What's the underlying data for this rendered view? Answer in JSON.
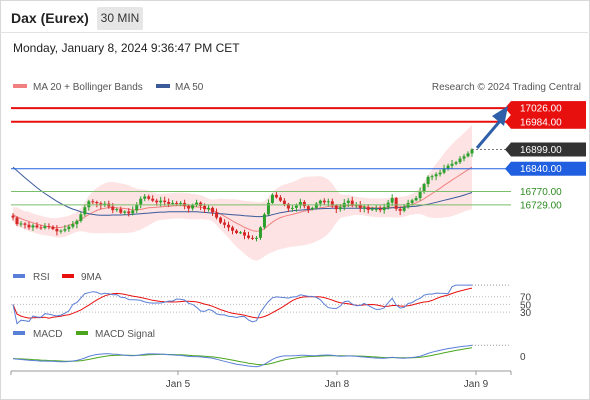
{
  "header": {
    "title": "Dax (Eurex)",
    "timeframe": "30 MIN",
    "datetime": "Monday, January 8, 2024 9:36:47 PM CET"
  },
  "legend": {
    "ma20": "MA 20 + Bollinger Bands",
    "ma50": "MA 50",
    "credit": "Research © 2024 Trading Central",
    "rsi": "RSI",
    "rsi_ma": "9MA",
    "macd": "MACD",
    "macd_signal": "MACD Signal"
  },
  "colors": {
    "resistance": "#e8100f",
    "support": "#7bbf6a",
    "pivot": "#2060e0",
    "candle_up": "#2ca02c",
    "candle_down": "#d62728",
    "ma20": "#f08080",
    "ma50": "#3a5a9a",
    "band_fill": "#fde3e3",
    "arrow": "#2f5fa8",
    "last_price_tag": "#333333"
  },
  "chart_data": {
    "type": "candlestick",
    "price_ylim": [
      16560,
      17060
    ],
    "x_tick_labels": [
      "Jan 5",
      "Jan 8",
      "Jan 9"
    ],
    "levels": [
      {
        "label": "17026.00",
        "value": 17026,
        "kind": "resistance"
      },
      {
        "label": "16984.00",
        "value": 16984,
        "kind": "resistance"
      },
      {
        "label": "16899.00",
        "value": 16899,
        "kind": "last"
      },
      {
        "label": "16840.00",
        "value": 16840,
        "kind": "pivot"
      },
      {
        "label": "16770.00",
        "value": 16770,
        "kind": "support"
      },
      {
        "label": "16729.00",
        "value": 16729,
        "kind": "support"
      }
    ],
    "close": [
      16690,
      16670,
      16672,
      16668,
      16660,
      16666,
      16660,
      16658,
      16664,
      16662,
      16655,
      16648,
      16650,
      16655,
      16662,
      16670,
      16680,
      16700,
      16722,
      16740,
      16738,
      16734,
      16728,
      16733,
      16724,
      16713,
      16716,
      16705,
      16709,
      16703,
      16712,
      16730,
      16748,
      16755,
      16748,
      16742,
      16737,
      16742,
      16738,
      16732,
      16735,
      16733,
      16735,
      16726,
      16718,
      16730,
      16736,
      16726,
      16716,
      16720,
      16706,
      16690,
      16675,
      16668,
      16660,
      16650,
      16643,
      16645,
      16635,
      16628,
      16625,
      16628,
      16660,
      16700,
      16735,
      16760,
      16752,
      16742,
      16732,
      16718,
      16720,
      16727,
      16738,
      16725,
      16716,
      16720,
      16733,
      16742,
      16737,
      16740,
      16727,
      16716,
      16722,
      16735,
      16742,
      16729,
      16730,
      16719,
      16722,
      16714,
      16716,
      16717,
      16713,
      16722,
      16736,
      16750,
      16717,
      16711,
      16722,
      16735,
      16743,
      16750,
      16770,
      16793,
      16815,
      16817,
      16823,
      16828,
      16841,
      16849,
      16855,
      16860,
      16871,
      16878,
      16887,
      16899
    ],
    "ma20": [
      16700,
      16692,
      16687,
      16682,
      16678,
      16674,
      16670,
      16667,
      16664,
      16662,
      16660,
      16659,
      16660,
      16662,
      16666,
      16671,
      16677,
      16684,
      16692,
      16700,
      16706,
      16712,
      16716,
      16719,
      16721,
      16721,
      16720,
      16719,
      16718,
      16716,
      16714,
      16714,
      16715,
      16718,
      16720,
      16721,
      16722,
      16723,
      16724,
      16725,
      16726,
      16727,
      16727,
      16726,
      16725,
      16724,
      16723,
      16722,
      16719,
      16716,
      16712,
      16707,
      16701,
      16694,
      16687,
      16680,
      16673,
      16667,
      16660,
      16655,
      16650,
      16648,
      16650,
      16656,
      16666,
      16676,
      16684,
      16690,
      16694,
      16697,
      16700,
      16703,
      16707,
      16710,
      16712,
      16714,
      16717,
      16720,
      16722,
      16724,
      16725,
      16725,
      16725,
      16726,
      16727,
      16727,
      16726,
      16725,
      16724,
      16722,
      16721,
      16720,
      16720,
      16720,
      16721,
      16722,
      16722,
      16722,
      16724,
      16727,
      16731,
      16735,
      16741,
      16748,
      16756,
      16764,
      16772,
      16780,
      16789,
      16797,
      16805,
      16813,
      16821,
      16829,
      16837,
      16845
    ],
    "ma50": [
      16845,
      16834,
      16823,
      16812,
      16802,
      16792,
      16782,
      16773,
      16764,
      16756,
      16748,
      16740,
      16733,
      16727,
      16721,
      16716,
      16712,
      16708,
      16705,
      16702,
      16700,
      16698,
      16697,
      16697,
      16697,
      16698,
      16698,
      16698,
      16699,
      16699,
      16700,
      16701,
      16702,
      16703,
      16704,
      16705,
      16706,
      16707,
      16707,
      16708,
      16708,
      16708,
      16708,
      16708,
      16708,
      16708,
      16708,
      16707,
      16706,
      16705,
      16704,
      16703,
      16702,
      16701,
      16700,
      16699,
      16698,
      16697,
      16696,
      16695,
      16694,
      16693,
      16693,
      16694,
      16696,
      16699,
      16702,
      16705,
      16707,
      16709,
      16711,
      16712,
      16713,
      16714,
      16715,
      16716,
      16717,
      16717,
      16718,
      16718,
      16719,
      16719,
      16719,
      16719,
      16719,
      16719,
      16719,
      16719,
      16719,
      16718,
      16718,
      16718,
      16718,
      16718,
      16719,
      16720,
      16720,
      16721,
      16722,
      16723,
      16724,
      16725,
      16727,
      16729,
      16731,
      16734,
      16737,
      16740,
      16743,
      16746,
      16749,
      16752,
      16755,
      16759,
      16763,
      16767
    ],
    "rsi_ticks": [
      70,
      50,
      30
    ],
    "macd_ticks": [
      0
    ]
  }
}
